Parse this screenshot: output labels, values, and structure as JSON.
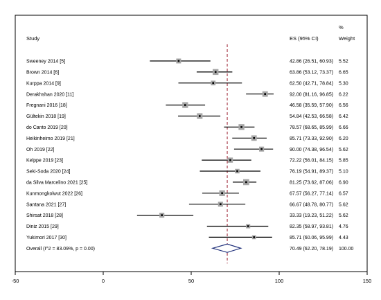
{
  "chart_data": {
    "type": "forest",
    "columns": {
      "study_header": "Study",
      "es_header": "ES (95% CI)",
      "weight_header_top": "%",
      "weight_header_bottom": "Weight"
    },
    "studies": [
      {
        "label": "Sweeney 2014 [5]",
        "es": 42.86,
        "lo": 26.51,
        "hi": 60.93,
        "es_text": "42.86 (26.51, 60.93)",
        "weight": "5.52"
      },
      {
        "label": "Brown  2014 [6]",
        "es": 63.86,
        "lo": 53.12,
        "hi": 73.37,
        "es_text": "63.86 (53.12, 73.37)",
        "weight": "6.65"
      },
      {
        "label": "Kurppa 2014 [9]",
        "es": 62.5,
        "lo": 42.71,
        "hi": 78.84,
        "es_text": "62.50 (42.71, 78.84)",
        "weight": "5.30"
      },
      {
        "label": "Derakhshan 2020 [11]",
        "es": 92.0,
        "lo": 81.16,
        "hi": 96.85,
        "es_text": "92.00 (81.16, 96.85)",
        "weight": "6.22"
      },
      {
        "label": "Fregnani 2016 [18]",
        "es": 46.58,
        "lo": 35.59,
        "hi": 57.9,
        "es_text": "46.58 (35.59, 57.90)",
        "weight": "6.56"
      },
      {
        "label": "Gültekin 2018 [19]",
        "es": 54.84,
        "lo": 42.53,
        "hi": 66.58,
        "es_text": "54.84 (42.53, 66.58)",
        "weight": "6.42"
      },
      {
        "label": "do Canto 2019 [20]",
        "es": 78.57,
        "lo": 68.65,
        "hi": 85.99,
        "es_text": "78.57 (68.65, 85.99)",
        "weight": "6.66"
      },
      {
        "label": "Heikinheimo 2019 [21]",
        "es": 85.71,
        "lo": 73.33,
        "hi": 92.9,
        "es_text": "85.71 (73.33, 92.90)",
        "weight": "6.20"
      },
      {
        "label": "Oh 2019 [22]",
        "es": 90.0,
        "lo": 74.38,
        "hi": 96.54,
        "es_text": "90.00 (74.38, 96.54)",
        "weight": "5.62"
      },
      {
        "label": "Kelppe 2019 [23]",
        "es": 72.22,
        "lo": 56.01,
        "hi": 84.15,
        "es_text": "72.22 (56.01, 84.15)",
        "weight": "5.85"
      },
      {
        "label": "Seki-Soda 2020 [24]",
        "es": 76.19,
        "lo": 54.91,
        "hi": 89.37,
        "es_text": "76.19 (54.91, 89.37)",
        "weight": "5.10"
      },
      {
        "label": "da Silva Marcelino 2021 [25]",
        "es": 81.25,
        "lo": 73.62,
        "hi": 87.06,
        "es_text": "81.25 (73.62, 87.06)",
        "weight": "6.90"
      },
      {
        "label": "Kunmongkolwut 2022 [26]",
        "es": 67.57,
        "lo": 56.27,
        "hi": 77.14,
        "es_text": "67.57 (56.27, 77.14)",
        "weight": "6.57"
      },
      {
        "label": "Santana 2021 [27]",
        "es": 66.67,
        "lo": 48.78,
        "hi": 80.77,
        "es_text": "66.67 (48.78, 80.77)",
        "weight": "5.62"
      },
      {
        "label": "Shirsat 2018 [28]",
        "es": 33.33,
        "lo": 19.23,
        "hi": 51.22,
        "es_text": "33.33 (19.23, 51.22)",
        "weight": "5.62"
      },
      {
        "label": "Diniz 2015 [29]",
        "es": 82.35,
        "lo": 58.97,
        "hi": 93.81,
        "es_text": "82.35 (58.97, 93.81)",
        "weight": "4.76"
      },
      {
        "label": "Yukimori 2017 [30]",
        "es": 85.71,
        "lo": 60.06,
        "hi": 95.99,
        "es_text": "85.71 (60.06, 95.99)",
        "weight": "4.43"
      }
    ],
    "overall": {
      "label": "Overall  (I^2 = 83.09%, p = 0.00)",
      "es": 70.49,
      "lo": 62.2,
      "hi": 78.19,
      "es_text": "70.49 (62.20, 78.19)",
      "weight": "100.00"
    },
    "xlim": [
      -50,
      150
    ],
    "xticks": [
      -50,
      0,
      50,
      100,
      150
    ],
    "reference_line": 70.49,
    "colors": {
      "ci_line": "#000000",
      "marker_box": "#a6a6a6",
      "diamond": "#1f2f7a",
      "ref_line": "#9b1b2c",
      "frame": "#000000"
    }
  }
}
